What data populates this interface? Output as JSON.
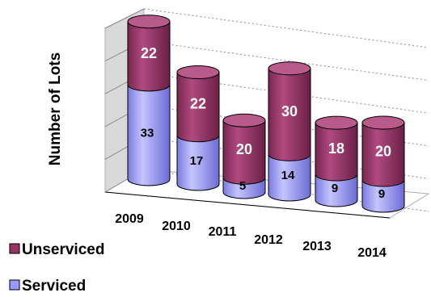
{
  "chart_data": {
    "type": "bar",
    "stacked": true,
    "shape": "cylinder-3d",
    "categories": [
      "2009",
      "2010",
      "2011",
      "2012",
      "2013",
      "2014"
    ],
    "series": [
      {
        "name": "Serviced",
        "values": [
          33,
          17,
          5,
          14,
          9,
          9
        ],
        "color": "#9999ff"
      },
      {
        "name": "Unserviced",
        "values": [
          22,
          22,
          20,
          30,
          18,
          20
        ],
        "color": "#993366"
      }
    ],
    "title": "",
    "xlabel": "",
    "ylabel": "Number of Lots",
    "ylim": [
      0,
      55
    ],
    "grid": true,
    "legend_position": "bottom-left"
  }
}
